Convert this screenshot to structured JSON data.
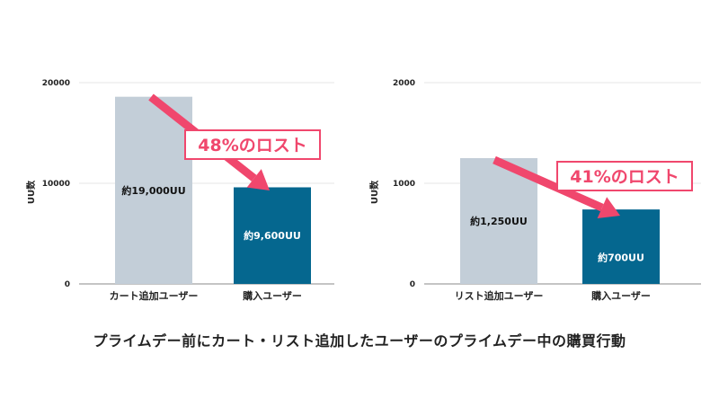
{
  "caption": "プライムデー前にカート・リスト追加したユーザーのプライムデー中の購買行動",
  "colors": {
    "bar_before": "#c3ced8",
    "bar_after": "#05678f",
    "arrow": "#f0476d",
    "grid": "#e6e6e6",
    "axis_text": "#222222"
  },
  "chart_data": [
    {
      "type": "bar",
      "ylabel": "UU数",
      "ylim": [
        0,
        20000
      ],
      "yticks": [
        "0",
        "10000",
        "20000"
      ],
      "yticks_values": [
        0,
        10000,
        20000
      ],
      "categories": [
        "カート追加ユーザー",
        "購入ユーザー"
      ],
      "values": [
        18600,
        9600
      ],
      "data_labels": [
        "約19,000UU",
        "約9,600UU"
      ],
      "annotation": "48%のロスト",
      "grid": true
    },
    {
      "type": "bar",
      "ylabel": "UU数",
      "ylim": [
        0,
        2000
      ],
      "yticks": [
        "0",
        "1000",
        "2000"
      ],
      "yticks_values": [
        0,
        1000,
        2000
      ],
      "categories": [
        "リスト追加ユーザー",
        "購入ユーザー"
      ],
      "values": [
        1250,
        740
      ],
      "data_labels": [
        "約1,250UU",
        "約700UU"
      ],
      "annotation": "41%のロスト",
      "grid": true
    }
  ]
}
